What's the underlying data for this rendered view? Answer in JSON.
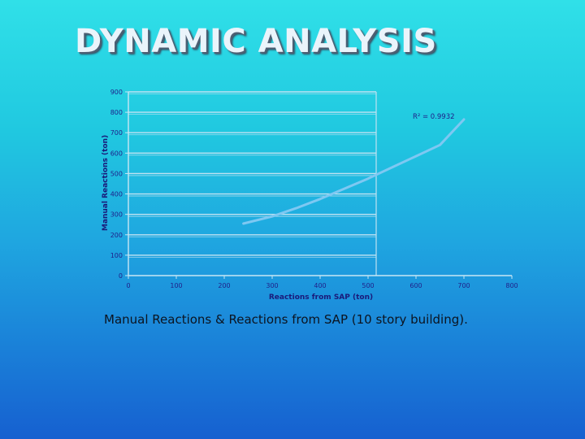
{
  "slide": {
    "title": "DYNAMIC ANALYSIS",
    "caption": "Manual Reactions & Reactions from SAP (10 story building)."
  },
  "colors": {
    "axis_label": "#1a1a7a",
    "tick_label": "#20208a",
    "gridline": "#bfe2f2",
    "trendline": "#7ec8f2"
  },
  "chart_data": {
    "type": "line",
    "title": "",
    "xlabel": "Reactions from SAP (ton)",
    "ylabel": "Manual Reactions (ton)",
    "xlim": [
      0,
      800
    ],
    "ylim": [
      0,
      900
    ],
    "xticks": [
      0,
      100,
      200,
      300,
      400,
      500,
      600,
      700,
      800
    ],
    "yticks": [
      0,
      100,
      200,
      300,
      400,
      500,
      600,
      700,
      800,
      900
    ],
    "grid": true,
    "legend": "none",
    "series": [
      {
        "x": [
          240,
          300,
          350,
          400,
          450,
          500,
          550,
          600,
          650,
          700
        ],
        "y": [
          255,
          290,
          330,
          375,
          425,
          475,
          530,
          585,
          640,
          765
        ]
      }
    ],
    "annotations": [
      {
        "text": "R² = 0.9932",
        "x": 705,
        "y": 780
      }
    ]
  }
}
